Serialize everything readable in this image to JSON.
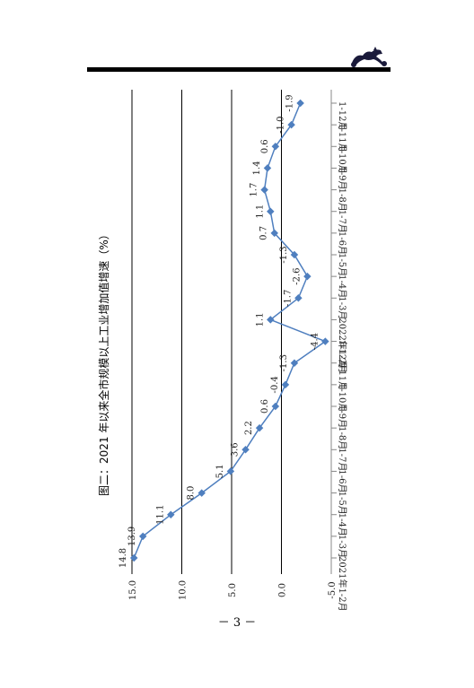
{
  "page": {
    "page_number": "－ 3 －",
    "logo_icon": "horse-logo-icon"
  },
  "colors": {
    "series": "#4F7FBF",
    "axis": "#888888",
    "gridline": "#000000"
  },
  "chart_data": {
    "type": "line",
    "orientation": "rotated-90-clockwise",
    "title": "图二：2021 年以来全市规模以上工业增加值增速（%）",
    "categories": [
      "2021年1-2月",
      "1-3月",
      "1-4月",
      "1-5月",
      "1-6月",
      "1-7月",
      "1-8月",
      "1-9月",
      "1-10月",
      "1-11月",
      "1-12月",
      "2022年1-2月",
      "1-3月",
      "1-4月",
      "1-5月",
      "1-6月",
      "1-7月",
      "1-8月",
      "1-9月",
      "1-10月",
      "1-11月",
      "1-12月"
    ],
    "series": [
      {
        "values": [
          14.8,
          13.9,
          11.1,
          8.0,
          5.1,
          3.6,
          2.2,
          0.6,
          -0.4,
          -1.3,
          -4.4,
          1.1,
          -1.7,
          -2.6,
          -1.3,
          0.7,
          1.1,
          1.7,
          1.4,
          0.6,
          -1.0,
          -1.9
        ]
      }
    ],
    "value_labels": [
      "14.8",
      "13.9",
      "11.1",
      "8.0",
      "5.1",
      "3.6",
      "2.2",
      "0.6",
      "-0.4",
      "-1.3",
      "-4.4",
      "1.1",
      "-1.7",
      "-2.6",
      "-1.3",
      "0.7",
      "1.1",
      "1.7",
      "1.4",
      "0.6",
      "-1.0",
      "-1.9"
    ],
    "y_ticks": [
      "15.0",
      "10.0",
      "5.0",
      "0.0",
      "-5.0"
    ],
    "y_tick_values": [
      15,
      10,
      5,
      0,
      -5
    ],
    "ylim": [
      -5,
      15
    ],
    "grid": true
  }
}
